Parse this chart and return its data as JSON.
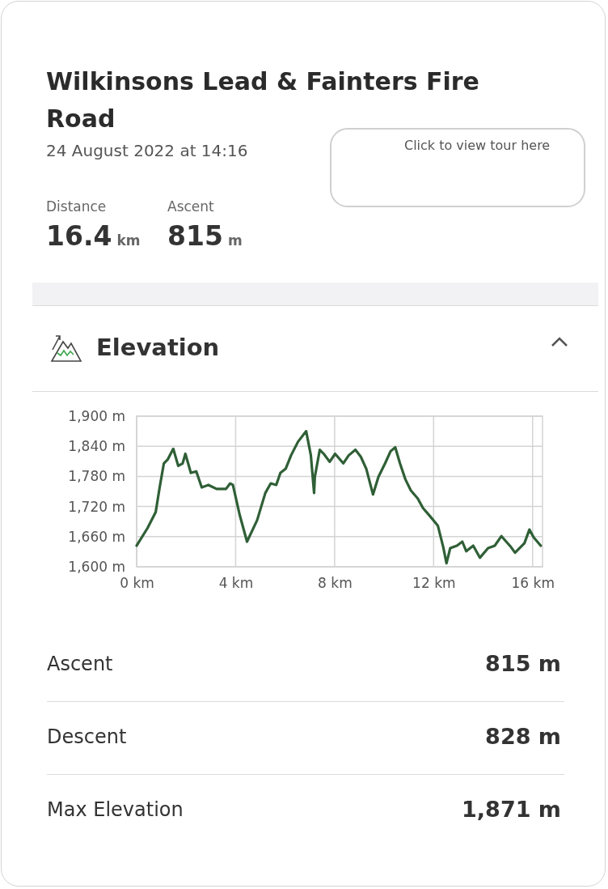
{
  "chart_data": {
    "type": "line",
    "title": "Wilkinsons Lead & Fainters Fire Road",
    "subtitle": "24 August 2022 at 14:16",
    "annotations": [
      "Click to view tour here",
      "Distance",
      "16.4",
      "km",
      "Ascent",
      "815",
      "m",
      "Elevation",
      "Ascent",
      "815 m",
      "Descent",
      "828 m",
      "Max Elevation",
      "1,871 m"
    ],
    "series": [
      {
        "color": "#2f5f36",
        "x": [
          0,
          0.44,
          0.77,
          0.93,
          1.1,
          1.26,
          1.48,
          1.68,
          1.86,
          1.97,
          2.19,
          2.41,
          2.63,
          2.9,
          3.23,
          3.61,
          3.78,
          3.89,
          4.16,
          4.46,
          4.87,
          5.2,
          5.42,
          5.64,
          5.81,
          6.02,
          6.24,
          6.52,
          6.85,
          7.04,
          7.17,
          7.2,
          7.4,
          7.56,
          7.8,
          8.02,
          8.35,
          8.57,
          8.84,
          9.06,
          9.28,
          9.55,
          9.77,
          10.04,
          10.26,
          10.45,
          10.64,
          10.86,
          11.08,
          11.36,
          11.57,
          11.85,
          12.17,
          12.39,
          12.52,
          12.67,
          12.94,
          13.16,
          13.32,
          13.6,
          13.87,
          14.2,
          14.47,
          14.74,
          15.13,
          15.29,
          15.67,
          15.87,
          16.05,
          16.33
        ],
        "values": [
          1642,
          1677,
          1709,
          1758,
          1806,
          1814,
          1835,
          1801,
          1806,
          1825,
          1787,
          1790,
          1758,
          1763,
          1755,
          1755,
          1766,
          1763,
          1704,
          1650,
          1693,
          1747,
          1766,
          1763,
          1787,
          1795,
          1822,
          1849,
          1870,
          1822,
          1747,
          1779,
          1833,
          1825,
          1809,
          1825,
          1806,
          1822,
          1833,
          1819,
          1795,
          1744,
          1779,
          1806,
          1830,
          1838,
          1806,
          1774,
          1752,
          1736,
          1717,
          1701,
          1682,
          1639,
          1607,
          1637,
          1642,
          1650,
          1631,
          1642,
          1618,
          1637,
          1642,
          1661,
          1639,
          1628,
          1647,
          1674,
          1658,
          1642
        ]
      }
    ],
    "xlim": [
      0,
      16.4
    ],
    "xticks": [
      {
        "value": 0,
        "label": "0 km"
      },
      {
        "value": 4,
        "label": "4 km"
      },
      {
        "value": 8,
        "label": "8 km"
      },
      {
        "value": 12,
        "label": "12 km"
      },
      {
        "value": 16,
        "label": "16 km"
      }
    ],
    "ylim": [
      1600,
      1900
    ],
    "yticks": [
      {
        "value": 1600,
        "label": "1,600 m"
      },
      {
        "value": 1660,
        "label": "1,660 m"
      },
      {
        "value": 1720,
        "label": "1,720 m"
      },
      {
        "value": 1780,
        "label": "1,780 m"
      },
      {
        "value": 1840,
        "label": "1,840 m"
      },
      {
        "value": 1900,
        "label": "1,900 m"
      }
    ],
    "grid": true,
    "marker": "none",
    "line_style": "solid"
  }
}
